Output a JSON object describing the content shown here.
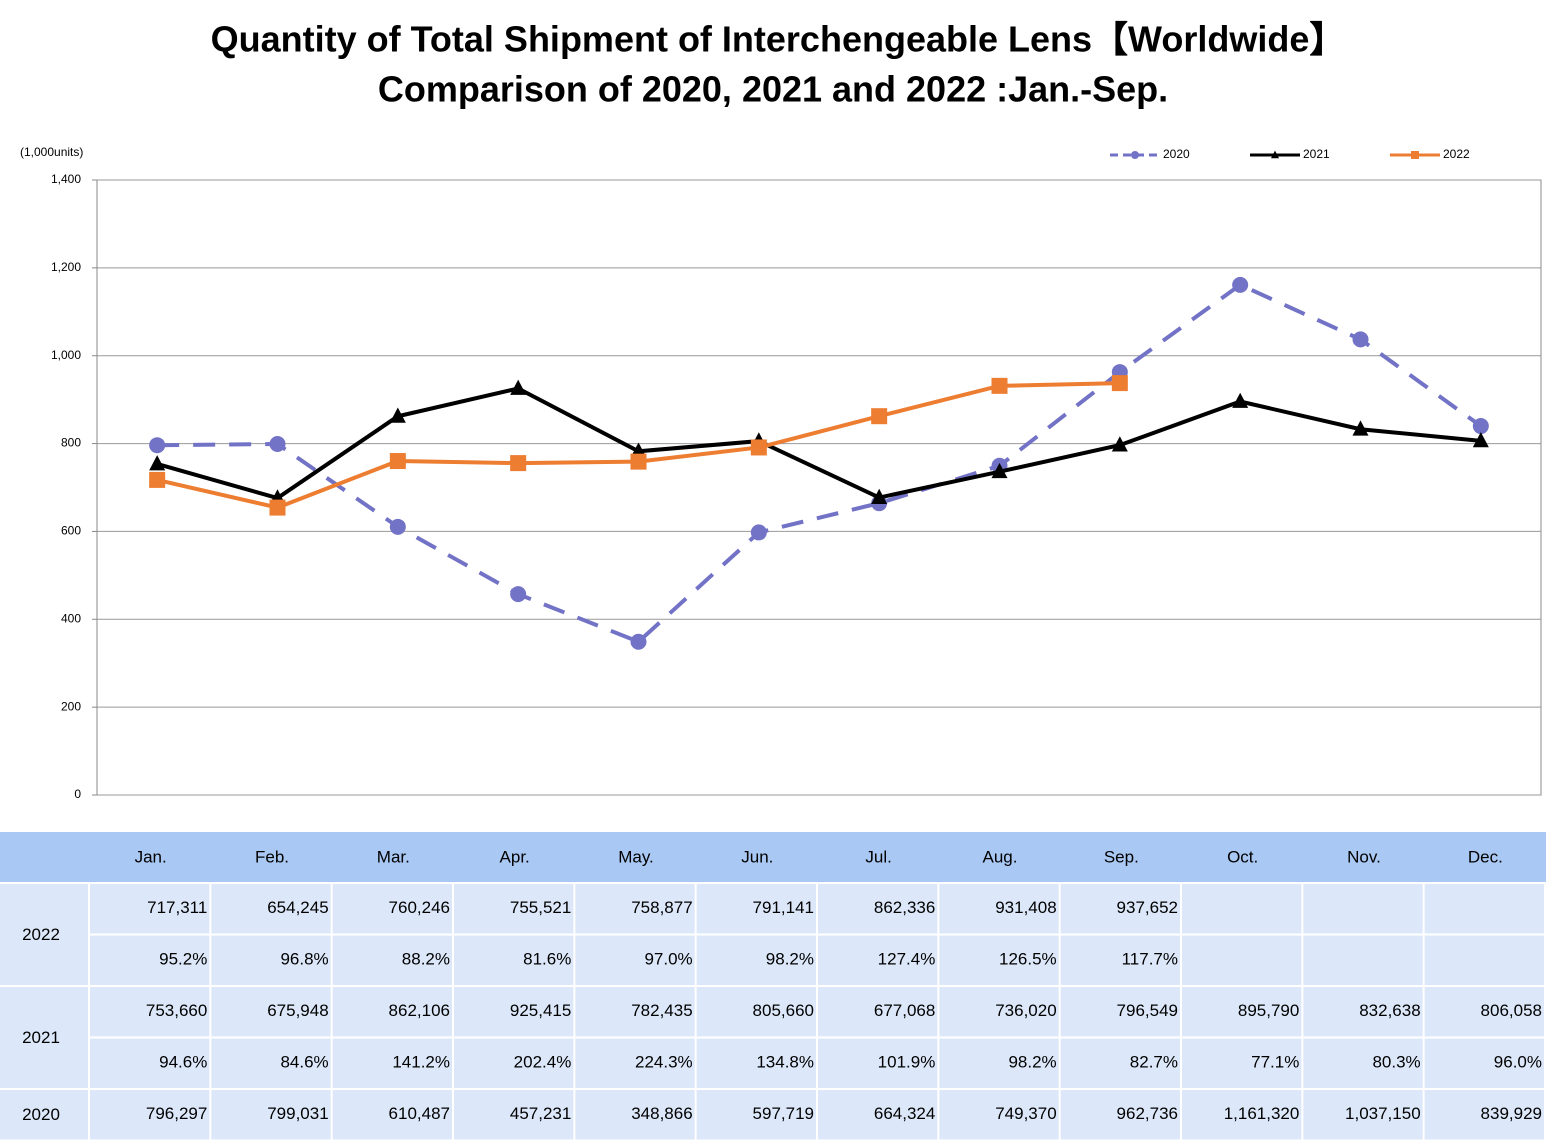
{
  "chart_data": {
    "type": "line",
    "title": "Quantity of Total Shipment of Interchengeable Lens【Worldwide】",
    "subtitle": "Comparison of 2020, 2021 and 2022 :Jan.-Sep.",
    "y_label": "(1,000units)",
    "categories": [
      "Jan.",
      "Feb.",
      "Mar.",
      "Apr.",
      "May.",
      "Jun.",
      "Jul.",
      "Aug.",
      "Sep.",
      "Oct.",
      "Nov.",
      "Dec."
    ],
    "series": [
      {
        "name": "2020",
        "color": "#7272c6",
        "dashed": true,
        "marker": "circle",
        "values": [
          796.297,
          799.031,
          610.487,
          457.231,
          348.866,
          597.719,
          664.324,
          749.37,
          962.736,
          1161.32,
          1037.15,
          839.929
        ]
      },
      {
        "name": "2021",
        "color": "#000000",
        "dashed": false,
        "marker": "triangle",
        "values": [
          753.66,
          675.948,
          862.106,
          925.415,
          782.435,
          805.66,
          677.068,
          736.02,
          796.549,
          895.79,
          832.638,
          806.058
        ]
      },
      {
        "name": "2022",
        "color": "#ed7d31",
        "dashed": false,
        "marker": "square",
        "values": [
          717.311,
          654.245,
          760.246,
          755.521,
          758.877,
          791.141,
          862.336,
          931.408,
          937.652,
          null,
          null,
          null
        ]
      }
    ],
    "ylim": [
      0,
      1400
    ],
    "yticks": [
      0,
      200,
      400,
      600,
      800,
      {
        "value": 1000,
        "label": "1,000"
      },
      {
        "value": 1200,
        "label": "1,200"
      },
      {
        "value": 1400,
        "label": "1,400"
      }
    ],
    "grid": true,
    "legend": "top-right"
  },
  "table": {
    "groups": [
      {
        "label": "2022",
        "lines": [
          [
            "717,311",
            "654,245",
            "760,246",
            "755,521",
            "758,877",
            "791,141",
            "862,336",
            "931,408",
            "937,652"
          ],
          [
            "95.2%",
            "96.8%",
            "88.2%",
            "81.6%",
            "97.0%",
            "98.2%",
            "127.4%",
            "126.5%",
            "117.7%"
          ]
        ]
      },
      {
        "label": "2021",
        "lines": [
          [
            "753,660",
            "675,948",
            "862,106",
            "925,415",
            "782,435",
            "805,660",
            "677,068",
            "736,020",
            "796,549",
            "895,790",
            "832,638",
            "806,058"
          ],
          [
            "94.6%",
            "84.6%",
            "141.2%",
            "202.4%",
            "224.3%",
            "134.8%",
            "101.9%",
            "98.2%",
            "82.7%",
            "77.1%",
            "80.3%",
            "96.0%"
          ]
        ]
      },
      {
        "label": "2020",
        "lines": [
          [
            "796,297",
            "799,031",
            "610,487",
            "457,231",
            "348,866",
            "597,719",
            "664,324",
            "749,370",
            "962,736",
            "1,161,320",
            "1,037,150",
            "839,929"
          ]
        ]
      }
    ]
  }
}
